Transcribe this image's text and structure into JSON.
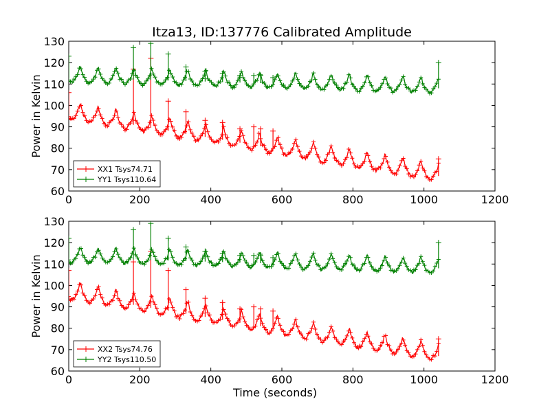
{
  "figure": {
    "title": "Itza13, ID:137776 Calibrated Amplitude"
  },
  "chart_data": [
    {
      "type": "line",
      "xlabel": "",
      "ylabel": "Power in Kelvin",
      "xlim": [
        0,
        1200
      ],
      "ylim": [
        60,
        130
      ],
      "xticks": [
        0,
        200,
        400,
        600,
        800,
        1000,
        1200
      ],
      "yticks": [
        60,
        70,
        80,
        90,
        100,
        110,
        120,
        130
      ],
      "grid": false,
      "legend_position": "lower-left",
      "marker": "plus",
      "series": [
        {
          "name": "XX1 Tsys74.71",
          "color": "#ff0000",
          "start": 96,
          "end": 67,
          "amplitude": 4.0,
          "period": 50.5,
          "phase": 32,
          "noise": 0.8,
          "spikes": [
            [
              0,
              106
            ],
            [
              182,
              117
            ],
            [
              231,
              122
            ],
            [
              280,
              102
            ],
            [
              330,
              97
            ],
            [
              384,
              93
            ],
            [
              433,
              92
            ],
            [
              482,
              89
            ],
            [
              521,
              90
            ],
            [
              540,
              89
            ],
            [
              575,
              88
            ],
            [
              1041,
              75
            ]
          ]
        },
        {
          "name": "YY1 Tsys110.64",
          "color": "#008000",
          "start": 113,
          "end": 108,
          "amplitude": 3.5,
          "period": 50.5,
          "phase": 32,
          "noise": 0.7,
          "spikes": [
            [
              0,
              123
            ],
            [
              182,
              127
            ],
            [
              231,
              129
            ],
            [
              280,
              124
            ],
            [
              330,
              118
            ],
            [
              384,
              116
            ],
            [
              433,
              115
            ],
            [
              482,
              114
            ],
            [
              521,
              114
            ],
            [
              540,
              114
            ],
            [
              575,
              113
            ],
            [
              1041,
              120
            ]
          ]
        }
      ]
    },
    {
      "type": "line",
      "xlabel": "Time (seconds)",
      "ylabel": "Power in Kelvin",
      "xlim": [
        0,
        1200
      ],
      "ylim": [
        60,
        130
      ],
      "xticks": [
        0,
        200,
        400,
        600,
        800,
        1000,
        1200
      ],
      "yticks": [
        60,
        70,
        80,
        90,
        100,
        110,
        120,
        130
      ],
      "grid": false,
      "legend_position": "lower-left",
      "marker": "plus",
      "series": [
        {
          "name": "XX2 Tsys74.76",
          "color": "#ff0000",
          "start": 96,
          "end": 67,
          "amplitude": 4.0,
          "period": 50.5,
          "phase": 32,
          "noise": 0.8,
          "spikes": [
            [
              0,
              107
            ],
            [
              182,
              111
            ],
            [
              231,
              116
            ],
            [
              280,
              107
            ],
            [
              330,
              98
            ],
            [
              384,
              94
            ],
            [
              433,
              92
            ],
            [
              482,
              89
            ],
            [
              521,
              90
            ],
            [
              540,
              89
            ],
            [
              575,
              88
            ],
            [
              1041,
              75
            ]
          ]
        },
        {
          "name": "YY2 Tsys110.50",
          "color": "#008000",
          "start": 113,
          "end": 108,
          "amplitude": 3.5,
          "period": 50.5,
          "phase": 32,
          "noise": 0.7,
          "spikes": [
            [
              0,
              122
            ],
            [
              182,
              126
            ],
            [
              231,
              129
            ],
            [
              280,
              122
            ],
            [
              330,
              118
            ],
            [
              384,
              116
            ],
            [
              433,
              115
            ],
            [
              482,
              114
            ],
            [
              521,
              114
            ],
            [
              540,
              114
            ],
            [
              575,
              113
            ],
            [
              1041,
              120
            ]
          ]
        }
      ]
    }
  ]
}
